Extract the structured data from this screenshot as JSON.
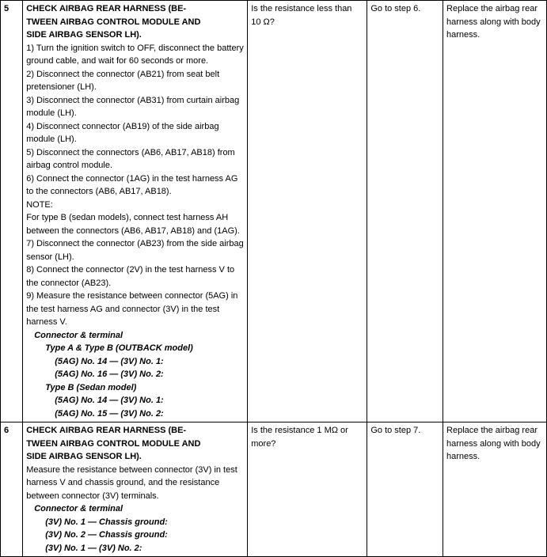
{
  "rows": [
    {
      "num": "5",
      "title": "CHECK AIRBAG REAR HARNESS (BE-\nTWEEN AIRBAG CONTROL MODULE AND\nSIDE AIRBAG SENSOR LH).",
      "steps": [
        "1)   Turn the ignition switch to OFF, disconnect the battery ground cable, and wait for 60 seconds or more.",
        "2)   Disconnect the connector (AB21) from seat belt pretensioner (LH).",
        "3)   Disconnect the connector (AB31) from curtain airbag module (LH).",
        "4)   Disconnect connector (AB19) of the side airbag module (LH).",
        "5)   Disconnect the connectors (AB6, AB17, AB18) from airbag control module.",
        "6)   Connect the connector (1AG) in the test harness AG to the connectors (AB6, AB17, AB18)."
      ],
      "note_label": "NOTE:",
      "note_text": "For type B (sedan models), connect test harness AH between the connectors (AB6, AB17, AB18) and (1AG).",
      "steps2": [
        "7)   Disconnect the connector (AB23) from the side airbag sensor (LH).",
        "8)   Connect the connector (2V) in the test harness V to the connector (AB23).",
        "9)   Measure the resistance between connector (5AG) in the test harness AG and connector (3V) in the test harness V."
      ],
      "conn_label": "Connector & terminal",
      "type_a": "Type A & Type B (OUTBACK model)",
      "type_a_lines": [
        "(5AG) No. 14 — (3V) No. 1:",
        "(5AG) No. 16 — (3V) No. 2:"
      ],
      "type_b": "Type B (Sedan model)",
      "type_b_lines": [
        "(5AG) No. 14 — (3V) No. 1:",
        "(5AG) No. 15 — (3V) No. 2:"
      ],
      "check": "Is the resistance less than 10 Ω?",
      "yes": "Go to step 6.",
      "no": "Replace the airbag rear harness along with body harness."
    },
    {
      "num": "6",
      "title": "CHECK AIRBAG REAR HARNESS (BE-\nTWEEN AIRBAG CONTROL MODULE AND\nSIDE AIRBAG SENSOR LH).",
      "body": "Measure the resistance between connector (3V) in test harness V and chassis ground, and the resistance between connector (3V) terminals.",
      "conn_label": "Connector & terminal",
      "lines": [
        "(3V) No. 1 — Chassis ground:",
        "(3V) No. 2 — Chassis ground:",
        "(3V) No. 1 — (3V) No. 2:"
      ],
      "check": "Is the resistance 1 MΩ or more?",
      "yes": "Go to step 7.",
      "no": "Replace the airbag rear harness along with body harness."
    }
  ]
}
